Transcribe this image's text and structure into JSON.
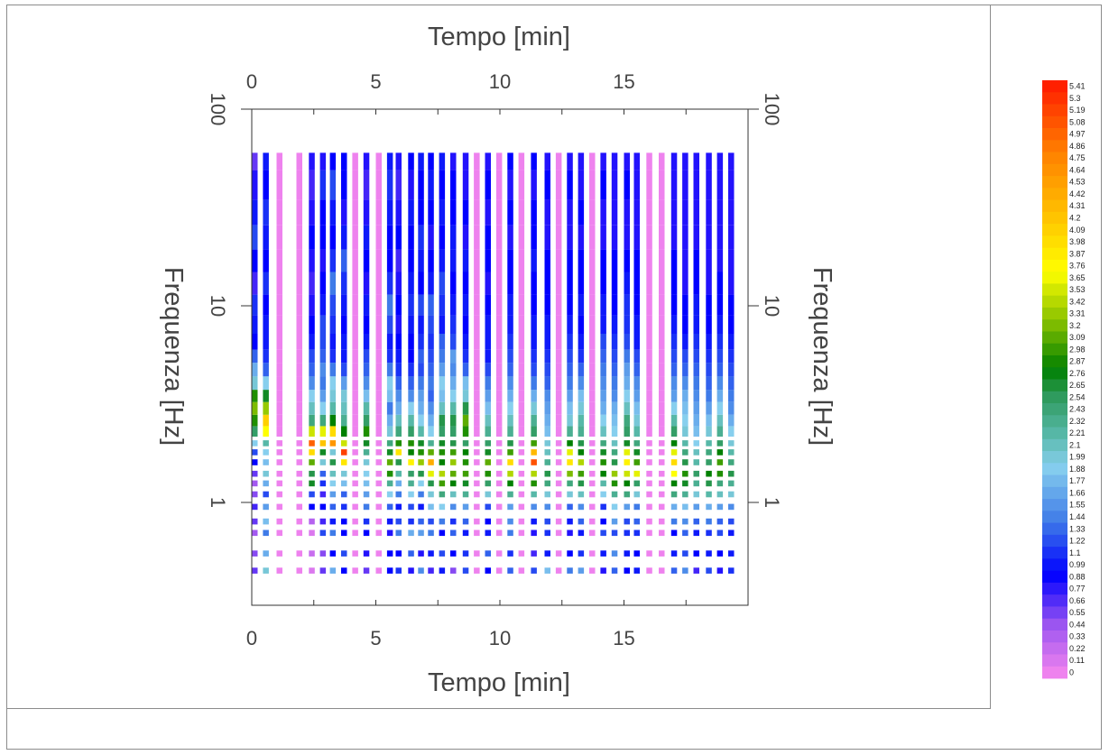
{
  "chart_data": {
    "type": "heatmap",
    "xlabel_top": "Tempo [min]",
    "xlabel_bottom": "Tempo [min]",
    "ylabel_left": "Frequenza [Hz]",
    "ylabel_right": "Frequenza [Hz]",
    "x_ticks": [
      "0",
      "5",
      "10",
      "15"
    ],
    "x_tick_values": [
      0,
      5,
      10,
      15
    ],
    "xlim": [
      0,
      20
    ],
    "y_scale": "log",
    "y_ticks": [
      "1",
      "10",
      "100"
    ],
    "y_tick_values": [
      1,
      10,
      100
    ],
    "ylim": [
      0.3,
      100
    ],
    "y_data_range": [
      0.4,
      60
    ],
    "time_columns": [
      0.0,
      0.45,
      1.0,
      1.8,
      2.3,
      2.75,
      3.15,
      3.6,
      4.05,
      4.5,
      5.0,
      5.45,
      5.8,
      6.3,
      6.7,
      7.1,
      7.55,
      8.0,
      8.5,
      8.95,
      9.4,
      9.85,
      10.3,
      10.75,
      11.25,
      11.8,
      12.25,
      12.7,
      13.15,
      13.6,
      14.05,
      14.5,
      15.0,
      15.4,
      15.9,
      16.4,
      16.9,
      17.35,
      17.8,
      18.3,
      18.75,
      19.2
    ],
    "freq_rows_hz": [
      0.45,
      0.55,
      0.7,
      0.8,
      0.95,
      1.1,
      1.25,
      1.4,
      1.6,
      1.8,
      2.0,
      2.3,
      2.6,
      3.0,
      3.5,
      4.0,
      4.8,
      5.5,
      6.5,
      8.0,
      10.0,
      13.0,
      17.0,
      22.0,
      30.0,
      40.0,
      60.0
    ],
    "amplitude_grid": [
      [
        0.6,
        0.5,
        0.4,
        0.6,
        0.7,
        0.5,
        0.4,
        0.6,
        0.9,
        1.2,
        1.9,
        2.5,
        2.9,
        3.2,
        2.9,
        2.0,
        1.7,
        1.3,
        0.9,
        1.0,
        1.1,
        0.7,
        0.9,
        1.2,
        1.0,
        0.8,
        0.6
      ],
      [
        2.0,
        1.7,
        1.4,
        1.8,
        1.6,
        1.2,
        1.7,
        2.0,
        1.8,
        1.9,
        2.2,
        3.7,
        4.1,
        3.3,
        2.7,
        1.9,
        1.3,
        1.1,
        1.0,
        1.0,
        0.9,
        1.1,
        0.9,
        1.0,
        1.1,
        0.9,
        1.0
      ],
      [
        0,
        0,
        0,
        0,
        0,
        0,
        0,
        0,
        0,
        0,
        0,
        0,
        0,
        0,
        0,
        0,
        0,
        0,
        0,
        0,
        0,
        0,
        0,
        0,
        0,
        0,
        0
      ],
      [
        0,
        0,
        0,
        0,
        0,
        0,
        0,
        0,
        0,
        0,
        0,
        0,
        0,
        0,
        0,
        0,
        0,
        0,
        0,
        0,
        0,
        0,
        0,
        0,
        0,
        0,
        0
      ],
      [
        0.1,
        0.2,
        0.1,
        0.3,
        0.9,
        1.2,
        2.7,
        2.6,
        3.1,
        4.0,
        5.0,
        3.5,
        2.4,
        2.1,
        1.9,
        1.5,
        1.3,
        1.2,
        1.0,
        0.9,
        0.8,
        0.7,
        0.8,
        0.9,
        0.8,
        0.7,
        0.8
      ],
      [
        0.6,
        0.5,
        1.2,
        0.7,
        0.9,
        0.7,
        1.1,
        1.3,
        2.0,
        2.7,
        4.2,
        3.6,
        2.4,
        1.9,
        1.6,
        1.4,
        1.5,
        1.3,
        1.2,
        1.2,
        1.0,
        0.9,
        0.8,
        0.9,
        0.9,
        1.1,
        0.8
      ],
      [
        1.7,
        0.9,
        1.4,
        1.0,
        1.3,
        1.6,
        1.9,
        2.1,
        2.6,
        2.0,
        4.6,
        4.0,
        2.8,
        2.2,
        2.0,
        1.9,
        1.4,
        1.1,
        1.0,
        1.1,
        1.2,
        1.4,
        1.1,
        0.9,
        1.0,
        1.2,
        0.9
      ],
      [
        0.9,
        1.2,
        0.9,
        0.9,
        1.1,
        1.3,
        1.8,
        2.0,
        3.9,
        5.2,
        3.5,
        2.8,
        2.3,
        2.1,
        2.0,
        1.6,
        1.2,
        1.0,
        1.0,
        0.9,
        1.0,
        1.1,
        1.3,
        1.0,
        0.8,
        0.9,
        0.9
      ],
      [
        0,
        0,
        0,
        0,
        0,
        0,
        0,
        0,
        0,
        0,
        0,
        0,
        0,
        0,
        0,
        0,
        0,
        0,
        0,
        0,
        0,
        0,
        0,
        0,
        0,
        0,
        0
      ],
      [
        0.6,
        0.8,
        0.9,
        1.1,
        1.4,
        1.6,
        1.8,
        1.9,
        2.0,
        2.3,
        2.7,
        2.9,
        2.5,
        2.2,
        1.8,
        1.5,
        1.3,
        1.2,
        1.0,
        0.9,
        1.0,
        0.8,
        0.9,
        1.0,
        0.8,
        0.7,
        0.8
      ],
      [
        0,
        0,
        0,
        0,
        0,
        0,
        0,
        0,
        0,
        0,
        0,
        0,
        0,
        0,
        0,
        0,
        0,
        0,
        0,
        0,
        0,
        0,
        0,
        0,
        0,
        0,
        0
      ],
      [
        0.9,
        0.9,
        0.8,
        1.0,
        1.3,
        1.9,
        2.3,
        2.9,
        3.1,
        2.7,
        2.4,
        2.0,
        1.7,
        1.4,
        1.8,
        1.9,
        1.4,
        1.1,
        1.0,
        1.2,
        1.4,
        1.1,
        0.9,
        0.9,
        1.0,
        1.1,
        1.0
      ],
      [
        1.1,
        0.9,
        1.4,
        1.2,
        1.0,
        1.4,
        1.7,
        2.2,
        2.6,
        3.9,
        2.9,
        2.4,
        2.1,
        1.7,
        1.5,
        1.3,
        1.1,
        1.0,
        0.9,
        0.8,
        0.9,
        0.8,
        0.7,
        0.9,
        0.8,
        0.7,
        0.8
      ],
      [
        0.8,
        1.3,
        1.7,
        1.1,
        1.2,
        1.9,
        2.3,
        2.5,
        3.8,
        2.8,
        2.9,
        2.5,
        2.2,
        1.9,
        1.5,
        1.3,
        1.1,
        0.9,
        0.9,
        1.0,
        1.1,
        1.0,
        0.9,
        0.9,
        1.0,
        0.8,
        0.9
      ],
      [
        1.5,
        0.8,
        1.6,
        1.3,
        1.0,
        1.4,
        1.9,
        2.6,
        3.3,
        2.9,
        2.7,
        2.2,
        1.9,
        1.7,
        1.6,
        1.4,
        1.2,
        1.3,
        1.1,
        1.0,
        1.2,
        0.9,
        1.0,
        1.1,
        0.9,
        0.9,
        1.0
      ],
      [
        0.7,
        1.0,
        1.4,
        1.2,
        1.8,
        2.0,
        2.6,
        3.6,
        4.4,
        3.1,
        2.3,
        1.9,
        1.7,
        1.5,
        1.3,
        1.4,
        1.3,
        1.2,
        1.1,
        1.2,
        1.3,
        1.0,
        0.9,
        0.8,
        0.9,
        1.0,
        0.9
      ],
      [
        1.0,
        1.2,
        0.9,
        1.4,
        1.9,
        2.4,
        3.0,
        3.4,
        2.8,
        2.9,
        2.7,
        2.5,
        2.6,
        2.1,
        1.8,
        1.9,
        1.6,
        1.4,
        1.3,
        1.0,
        1.1,
        1.2,
        1.0,
        0.9,
        1.0,
        0.9,
        1.0
      ],
      [
        0.5,
        0.9,
        1.3,
        1.1,
        1.5,
        2.1,
        2.8,
        3.1,
        3.3,
        3.0,
        2.6,
        2.5,
        2.6,
        2.2,
        1.9,
        1.7,
        1.5,
        1.6,
        1.2,
        1.1,
        1.0,
        0.9,
        1.0,
        1.0,
        0.9,
        0.9,
        0.8
      ],
      [
        1.2,
        1.1,
        1.0,
        1.3,
        1.6,
        2.3,
        2.7,
        3.0,
        2.9,
        2.8,
        2.5,
        2.9,
        3.1,
        2.6,
        2.0,
        1.8,
        1.3,
        1.1,
        1.0,
        0.9,
        1.0,
        0.9,
        1.0,
        0.8,
        0.9,
        0.8,
        0.8
      ],
      [
        0,
        0,
        0,
        0,
        0,
        0,
        0,
        0,
        0,
        0,
        0,
        0,
        0,
        0,
        0,
        0,
        0,
        0,
        0,
        0,
        0,
        0,
        0,
        0,
        0,
        0,
        0
      ],
      [
        0.9,
        1.3,
        1.0,
        0.9,
        1.2,
        2.0,
        2.5,
        2.9,
        3.1,
        2.7,
        2.5,
        2.3,
        2.1,
        1.8,
        1.6,
        1.4,
        1.2,
        1.0,
        1.0,
        1.0,
        0.9,
        0.8,
        0.9,
        0.9,
        0.8,
        0.9,
        0.8
      ],
      [
        0,
        0,
        0,
        0,
        0,
        0,
        0,
        0,
        0,
        0,
        0,
        0,
        0,
        0,
        0,
        0,
        0,
        0,
        0,
        0,
        0,
        0,
        0,
        0,
        0,
        0,
        0
      ],
      [
        1.3,
        1.1,
        1.4,
        1.5,
        1.6,
        2.3,
        2.8,
        3.4,
        4.0,
        3.0,
        2.6,
        2.3,
        2.1,
        1.9,
        1.7,
        1.5,
        1.3,
        1.2,
        1.1,
        1.0,
        1.0,
        0.9,
        0.9,
        0.8,
        0.9,
        0.8,
        0.9
      ],
      [
        0,
        0,
        0,
        0,
        0,
        0,
        0,
        0,
        0,
        0,
        0,
        0,
        0,
        0,
        0,
        0,
        0,
        0,
        0,
        0,
        0,
        0,
        0,
        0,
        0,
        0,
        0
      ],
      [
        1.2,
        0.7,
        0.8,
        1.0,
        1.5,
        2.2,
        2.9,
        3.4,
        5.1,
        4.3,
        3.0,
        2.5,
        2.3,
        2.0,
        1.7,
        1.4,
        1.2,
        1.1,
        1.0,
        1.0,
        0.9,
        0.9,
        1.0,
        0.9,
        0.9,
        0.8,
        0.9
      ],
      [
        1.8,
        1.0,
        1.1,
        1.2,
        1.5,
        2.0,
        2.4,
        2.6,
        2.3,
        2.1,
        2.0,
        1.8,
        1.7,
        1.6,
        1.5,
        1.3,
        1.2,
        1.1,
        1.0,
        1.0,
        0.9,
        0.9,
        0.9,
        0.8,
        0.8,
        0.9,
        0.8
      ],
      [
        0,
        0,
        0,
        0,
        0,
        0,
        0,
        0,
        0,
        0,
        0,
        0,
        0,
        0,
        0,
        0,
        0,
        0,
        0,
        0,
        0,
        0,
        0,
        0,
        0,
        0,
        0
      ],
      [
        1.4,
        0.9,
        0.8,
        1.0,
        1.3,
        2.0,
        2.4,
        3.2,
        3.9,
        3.6,
        2.8,
        2.3,
        2.0,
        1.8,
        1.6,
        1.4,
        1.3,
        1.2,
        1.1,
        1.0,
        0.9,
        0.9,
        0.9,
        0.8,
        0.8,
        0.9,
        0.8
      ],
      [
        1.6,
        1.1,
        1.0,
        1.3,
        1.5,
        2.1,
        2.6,
        3.0,
        3.4,
        2.8,
        2.6,
        2.3,
        2.2,
        2.0,
        1.8,
        1.5,
        1.3,
        1.1,
        1.0,
        0.9,
        1.0,
        0.9,
        0.9,
        0.8,
        0.9,
        0.8,
        0.8
      ],
      [
        0,
        0,
        0,
        0,
        0,
        0,
        0,
        0,
        0,
        0,
        0,
        0,
        0,
        0,
        0,
        0,
        0,
        0,
        0,
        0,
        0,
        0,
        0,
        0,
        0,
        0,
        0
      ],
      [
        0.8,
        1.0,
        1.2,
        0.9,
        1.1,
        1.9,
        2.2,
        2.8,
        2.9,
        2.7,
        2.4,
        2.1,
        1.9,
        1.7,
        1.6,
        1.5,
        1.4,
        1.3,
        1.2,
        1.0,
        1.0,
        0.9,
        0.9,
        0.8,
        0.8,
        0.9,
        0.8
      ],
      [
        1.3,
        1.5,
        1.2,
        1.6,
        1.9,
        2.3,
        2.9,
        3.3,
        2.6,
        2.4,
        2.1,
        1.9,
        1.8,
        1.7,
        1.5,
        1.4,
        1.3,
        1.2,
        1.1,
        1.0,
        0.9,
        0.9,
        0.9,
        0.8,
        0.8,
        0.8,
        0.8
      ],
      [
        0.9,
        1.0,
        1.1,
        1.2,
        1.6,
        2.4,
        2.8,
        3.5,
        3.8,
        3.6,
        2.7,
        2.5,
        2.4,
        2.1,
        1.9,
        1.7,
        1.6,
        1.4,
        1.2,
        1.1,
        1.1,
        1.0,
        0.9,
        0.8,
        0.8,
        0.9,
        0.8
      ],
      [
        1.0,
        0.9,
        1.1,
        1.3,
        1.4,
        2.0,
        2.5,
        3.6,
        3.0,
        2.7,
        2.4,
        2.2,
        2.0,
        1.8,
        1.6,
        1.5,
        1.3,
        1.2,
        1.0,
        1.0,
        0.9,
        0.9,
        0.9,
        0.8,
        0.8,
        0.8,
        0.8
      ],
      [
        0,
        0,
        0,
        0,
        0,
        0,
        0,
        0,
        0,
        0,
        0,
        0,
        0,
        0,
        0,
        0,
        0,
        0,
        0,
        0,
        0,
        0,
        0,
        0,
        0,
        0,
        0
      ],
      [
        0,
        0,
        0,
        0,
        0,
        0,
        0,
        0,
        0,
        0,
        0,
        0,
        0,
        0,
        0,
        0,
        0,
        0,
        0,
        0,
        0,
        0,
        0,
        0,
        0,
        0,
        0
      ],
      [
        1.3,
        1.0,
        0.9,
        1.4,
        1.7,
        2.4,
        2.8,
        3.7,
        4.0,
        3.6,
        2.8,
        2.5,
        2.2,
        1.9,
        1.6,
        1.5,
        1.3,
        1.2,
        1.1,
        1.0,
        0.9,
        0.9,
        0.9,
        0.8,
        0.8,
        0.8,
        0.8
      ],
      [
        1.5,
        1.2,
        1.3,
        1.5,
        1.8,
        2.3,
        2.7,
        2.9,
        2.6,
        2.4,
        2.2,
        2.0,
        1.9,
        1.8,
        1.7,
        1.5,
        1.3,
        1.2,
        1.0,
        0.9,
        0.9,
        0.8,
        0.8,
        0.8,
        0.8,
        0.8,
        0.8
      ],
      [
        0.7,
        0.9,
        1.0,
        1.3,
        1.6,
        2.0,
        2.3,
        2.5,
        2.2,
        2.1,
        1.9,
        1.8,
        1.7,
        1.6,
        1.5,
        1.4,
        1.3,
        1.2,
        1.1,
        1.0,
        1.0,
        0.9,
        0.9,
        0.8,
        0.8,
        0.8,
        0.8
      ],
      [
        1.2,
        1.0,
        1.1,
        1.4,
        1.7,
        2.2,
        2.6,
        2.8,
        2.5,
        2.4,
        2.2,
        2.0,
        1.8,
        1.6,
        1.4,
        1.3,
        1.2,
        1.1,
        1.0,
        0.9,
        0.9,
        0.8,
        0.8,
        0.8,
        0.8,
        0.8,
        0.8
      ],
      [
        0.8,
        0.9,
        1.2,
        1.3,
        1.6,
        2.1,
        2.4,
        2.9,
        3.0,
        2.8,
        2.5,
        2.3,
        2.1,
        1.9,
        1.7,
        1.5,
        1.3,
        1.2,
        1.1,
        1.0,
        0.9,
        0.9,
        0.8,
        0.8,
        0.8,
        0.8,
        0.8
      ],
      [
        1.1,
        1.0,
        1.0,
        1.2,
        1.5,
        2.0,
        2.3,
        2.6,
        2.4,
        2.2,
        2.0,
        1.9,
        1.7,
        1.5,
        1.4,
        1.3,
        1.2,
        1.1,
        1.0,
        0.9,
        0.9,
        0.8,
        0.8,
        0.8,
        0.8,
        0.8,
        0.8
      ]
    ],
    "colorbar": {
      "labels": [
        "5.41",
        "5.3",
        "5.19",
        "5.08",
        "4.97",
        "4.86",
        "4.75",
        "4.64",
        "4.53",
        "4.42",
        "4.31",
        "4.2",
        "4.09",
        "3.98",
        "3.87",
        "3.76",
        "3.65",
        "3.53",
        "3.42",
        "3.31",
        "3.2",
        "3.09",
        "2.98",
        "2.87",
        "2.76",
        "2.65",
        "2.54",
        "2.43",
        "2.32",
        "2.21",
        "2.1",
        "1.99",
        "1.88",
        "1.77",
        "1.66",
        "1.55",
        "1.44",
        "1.33",
        "1.22",
        "1.1",
        "0.99",
        "0.88",
        "0.77",
        "0.66",
        "0.55",
        "0.44",
        "0.33",
        "0.22",
        "0.11",
        "0"
      ],
      "min": 0,
      "max": 5.41,
      "stops": [
        {
          "v": 0.0,
          "c": "#ee82ee"
        },
        {
          "v": 0.44,
          "c": "#9b55f0"
        },
        {
          "v": 0.9,
          "c": "#0000ff"
        },
        {
          "v": 1.4,
          "c": "#3f7be8"
        },
        {
          "v": 1.9,
          "c": "#87cfee"
        },
        {
          "v": 2.2,
          "c": "#57b8a8"
        },
        {
          "v": 2.55,
          "c": "#2e9a5c"
        },
        {
          "v": 2.8,
          "c": "#008000"
        },
        {
          "v": 3.2,
          "c": "#7cbb00"
        },
        {
          "v": 3.7,
          "c": "#ffff00"
        },
        {
          "v": 4.2,
          "c": "#ffc400"
        },
        {
          "v": 4.8,
          "c": "#ff8000"
        },
        {
          "v": 5.41,
          "c": "#ff2000"
        }
      ]
    }
  }
}
